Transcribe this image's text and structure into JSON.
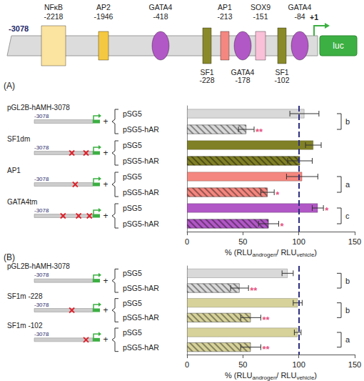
{
  "diagram": {
    "start": -3078,
    "sites": [
      {
        "name": "NFκB",
        "position": -2218,
        "color": "#fbe3a0",
        "shape": "box",
        "label_side": "above"
      },
      {
        "name": "AP2",
        "position": -1946,
        "color": "#f5c842",
        "shape": "box",
        "label_side": "above"
      },
      {
        "name": "GATA4",
        "position": -418,
        "color": "#b157c6",
        "shape": "ellipse",
        "label_side": "above"
      },
      {
        "name": "SF1",
        "position": -228,
        "color": "#8a8a2a",
        "shape": "box",
        "label_side": "below"
      },
      {
        "name": "AP1",
        "position": -213,
        "color": "#f4877f",
        "shape": "box",
        "label_side": "above"
      },
      {
        "name": "GATA4",
        "position": -178,
        "color": "#b157c6",
        "shape": "ellipse",
        "label_side": "below"
      },
      {
        "name": "SOX9",
        "position": -151,
        "color": "#f9c0d8",
        "shape": "box",
        "label_side": "above"
      },
      {
        "name": "SF1",
        "position": -102,
        "color": "#8a8a2a",
        "shape": "box",
        "label_side": "below"
      },
      {
        "name": "GATA4",
        "position": -84,
        "color": "#b157c6",
        "shape": "ellipse",
        "label_side": "above"
      }
    ],
    "tss_label": "+1",
    "reporter": "luc",
    "reporter_color": "#3cb043"
  },
  "chart_data": [
    {
      "type": "bar",
      "orientation": "horizontal",
      "panel": "(A)",
      "categories": [
        "pSG5",
        "pSG5-hAR",
        "pSG5",
        "pSG5-hAR",
        "pSG5",
        "pSG5-hAR",
        "pSG5",
        "pSG5-hAR"
      ],
      "values": [
        105,
        53,
        113,
        101,
        103,
        72,
        117,
        73
      ],
      "errors": [
        13,
        7,
        7,
        11,
        14,
        6,
        5,
        9
      ],
      "colors": [
        "#d9d9d9",
        "#d9d9d9",
        "#808026",
        "#808026",
        "#f4877f",
        "#f4877f",
        "#b157c6",
        "#b157c6"
      ],
      "significance": [
        null,
        "**",
        null,
        null,
        null,
        "*",
        "*",
        "*"
      ],
      "constructs": [
        {
          "label": "pGL2B-hAMH-3078",
          "start": -3078,
          "mutations": []
        },
        {
          "label": "SF1dm",
          "start": -3078,
          "mutations": [
            -228,
            -102
          ]
        },
        {
          "label": "AP1",
          "start": -3078,
          "mutations": [
            -213
          ]
        },
        {
          "label": "GATA4tm",
          "start": -3078,
          "mutations": [
            -418,
            -178,
            -84
          ]
        }
      ],
      "brackets": [
        "b",
        null,
        "a",
        "c"
      ],
      "connector": "+",
      "xlabel": "% (RLUandrogen/ RLUvehicle)",
      "xlabel_subscripts": [
        "androgen",
        "vehicle"
      ],
      "xlim": [
        0,
        150
      ],
      "xticks": [
        0,
        50,
        100,
        150
      ],
      "reference_line": 100,
      "grid": false
    },
    {
      "type": "bar",
      "orientation": "horizontal",
      "panel": "(B)",
      "categories": [
        "pSG5",
        "pSG5-hAR",
        "pSG5",
        "pSG5-hAR",
        "pSG5",
        "pSG5-hAR"
      ],
      "values": [
        90,
        47,
        99,
        57,
        99,
        57
      ],
      "errors": [
        5,
        8,
        4,
        9,
        3,
        9
      ],
      "colors": [
        "#d9d9d9",
        "#d9d9d9",
        "#d6d29a",
        "#d6d29a",
        "#d6d29a",
        "#d6d29a"
      ],
      "significance": [
        null,
        "**",
        null,
        "**",
        null,
        "**"
      ],
      "constructs": [
        {
          "label": "pGL2B-hAMH-3078",
          "start": -3078,
          "mutations": []
        },
        {
          "label": "SF1m -228",
          "start": -3078,
          "mutations": [
            -228
          ]
        },
        {
          "label": "SF1m -102",
          "start": -3078,
          "mutations": [
            -102
          ]
        }
      ],
      "brackets": [
        "b",
        "b",
        "a"
      ],
      "connector": "+",
      "xlabel": "% (RLUandrogen/ RLUvehicle)",
      "xlabel_subscripts": [
        "androgen",
        "vehicle"
      ],
      "xlim": [
        0,
        150
      ],
      "xticks": [
        0,
        50,
        100,
        150
      ],
      "reference_line": 100,
      "grid": false
    }
  ]
}
